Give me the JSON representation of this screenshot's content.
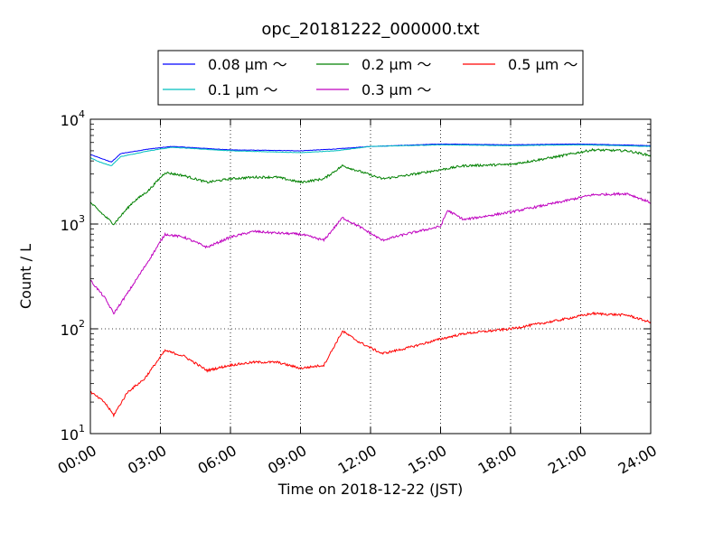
{
  "chart_data": {
    "type": "line",
    "title": "opc_20181222_000000.txt",
    "xlabel": "Time on 2018-12-22 (JST)",
    "ylabel": "Count / L",
    "yscale": "log",
    "ylim": [
      10,
      10000
    ],
    "xlim_hours": [
      0,
      24
    ],
    "grid": true,
    "legend_position": "top-center",
    "x_ticks": [
      "00:00",
      "03:00",
      "06:00",
      "09:00",
      "12:00",
      "15:00",
      "18:00",
      "21:00",
      "24:00"
    ],
    "y_ticks": [
      {
        "base": "10",
        "exp": "1"
      },
      {
        "base": "10",
        "exp": "2"
      },
      {
        "base": "10",
        "exp": "3"
      },
      {
        "base": "10",
        "exp": "4"
      }
    ],
    "series": [
      {
        "name": "0.08 μm ～",
        "color": "#0000ff",
        "x_hours": [
          0,
          0.5,
          0.9,
          1.3,
          2.5,
          3.5,
          6,
          9,
          10.5,
          12,
          15,
          18,
          21,
          24
        ],
        "values": [
          4600,
          4200,
          3900,
          4700,
          5200,
          5500,
          5100,
          5000,
          5200,
          5500,
          5800,
          5700,
          5800,
          5600
        ]
      },
      {
        "name": "0.1 μm ～",
        "color": "#00bfbf",
        "x_hours": [
          0,
          0.4,
          0.9,
          1.3,
          2.5,
          3.5,
          6,
          9,
          10.5,
          12,
          15,
          18,
          21,
          24
        ],
        "values": [
          4300,
          3900,
          3600,
          4400,
          5000,
          5400,
          5000,
          4800,
          5000,
          5500,
          5700,
          5600,
          5700,
          5500
        ]
      },
      {
        "name": "0.2 μm ～",
        "color": "#008000",
        "x_hours": [
          0,
          0.6,
          1.0,
          1.8,
          2.5,
          3.2,
          4,
          5,
          6,
          7,
          8,
          9,
          10,
          10.8,
          11.5,
          12.5,
          13.5,
          15,
          16,
          18,
          20,
          21.5,
          23,
          24
        ],
        "values": [
          1600,
          1200,
          1000,
          1600,
          2100,
          3100,
          2900,
          2500,
          2700,
          2800,
          2800,
          2500,
          2700,
          3600,
          3200,
          2700,
          2900,
          3300,
          3600,
          3700,
          4400,
          5100,
          5000,
          4500
        ]
      },
      {
        "name": "0.3 μm ～",
        "color": "#bf00bf",
        "x_hours": [
          0,
          0.6,
          1.0,
          1.6,
          2.5,
          3.2,
          4,
          5,
          6,
          7,
          8,
          9,
          10,
          10.8,
          11.5,
          12.5,
          13.5,
          15,
          15.3,
          16,
          18,
          20,
          21.5,
          23,
          24
        ],
        "values": [
          290,
          200,
          140,
          220,
          450,
          800,
          750,
          600,
          750,
          850,
          820,
          800,
          700,
          1150,
          950,
          700,
          800,
          950,
          1350,
          1100,
          1300,
          1600,
          1900,
          1950,
          1600
        ]
      },
      {
        "name": "0.5 μm ～",
        "color": "#ff0000",
        "x_hours": [
          0,
          0.6,
          1.0,
          1.6,
          2.3,
          3.2,
          4,
          5,
          6,
          7,
          8,
          9,
          10,
          10.8,
          11.5,
          12.5,
          13.5,
          15,
          16,
          18,
          20,
          21.5,
          23,
          24
        ],
        "values": [
          25,
          20,
          15,
          25,
          33,
          62,
          55,
          40,
          45,
          48,
          48,
          42,
          45,
          95,
          75,
          58,
          65,
          80,
          90,
          100,
          120,
          140,
          135,
          115
        ]
      }
    ]
  }
}
